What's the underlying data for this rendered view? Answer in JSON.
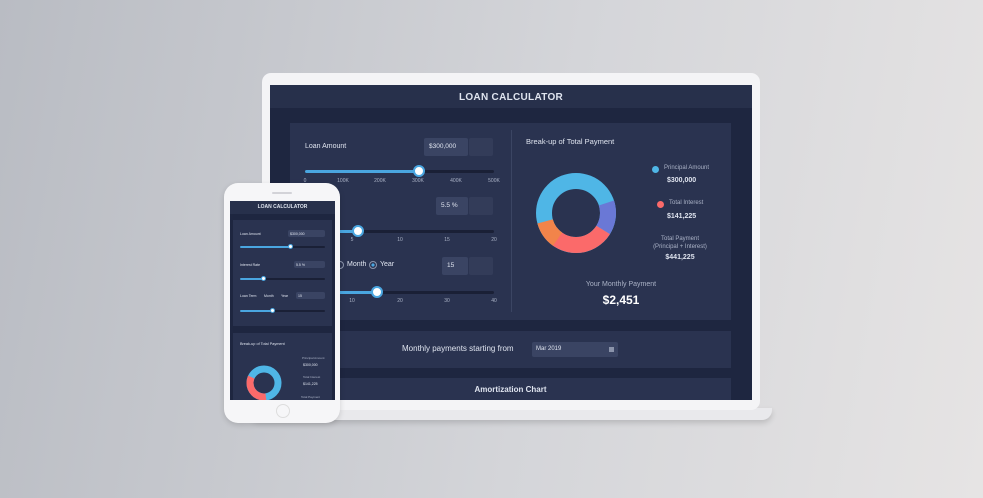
{
  "laptop": {
    "title": "LOAN CALCULATOR",
    "loan_amount": {
      "label": "Loan Amount",
      "value": "$300,000",
      "ticks": [
        "0",
        "100K",
        "200K",
        "300K",
        "400K",
        "500K"
      ]
    },
    "interest_rate": {
      "value": "5.5 %",
      "ticks": [
        "5",
        "10",
        "15",
        "20"
      ]
    },
    "loan_term": {
      "month": "Month",
      "year": "Year",
      "value": "15",
      "ticks": [
        "10",
        "20",
        "30",
        "40"
      ]
    },
    "breakup": {
      "title": "Break-up of Total Payment",
      "principal_label": "Principal Amount",
      "principal": "$300,000",
      "interest_label": "Total Interest",
      "interest": "$141,225",
      "total_label": "Total Payment",
      "total_note": "(Principal + Interest)",
      "total": "$441,225",
      "monthly_label": "Your Monthly Payment",
      "monthly": "$2,451"
    },
    "start": {
      "label": "Monthly payments starting from",
      "value": "Mar 2019"
    },
    "amortization": "Amortization Chart"
  },
  "phone": {
    "title": "LOAN CALCULATOR",
    "loan_amount_label": "Loan Amount",
    "loan_amount": "$300,000",
    "interest_label": "Interest Rate",
    "interest": "5.5 %",
    "term_label": "Loan Term",
    "month": "Month",
    "year": "Year",
    "term": "15",
    "breakup_title": "Break-up of Total Payment",
    "principal_label": "Principal Amount",
    "principal": "$300,000",
    "interest_total_label": "Total Interest",
    "interest_total": "$141,225",
    "total_label": "Total Payment"
  }
}
